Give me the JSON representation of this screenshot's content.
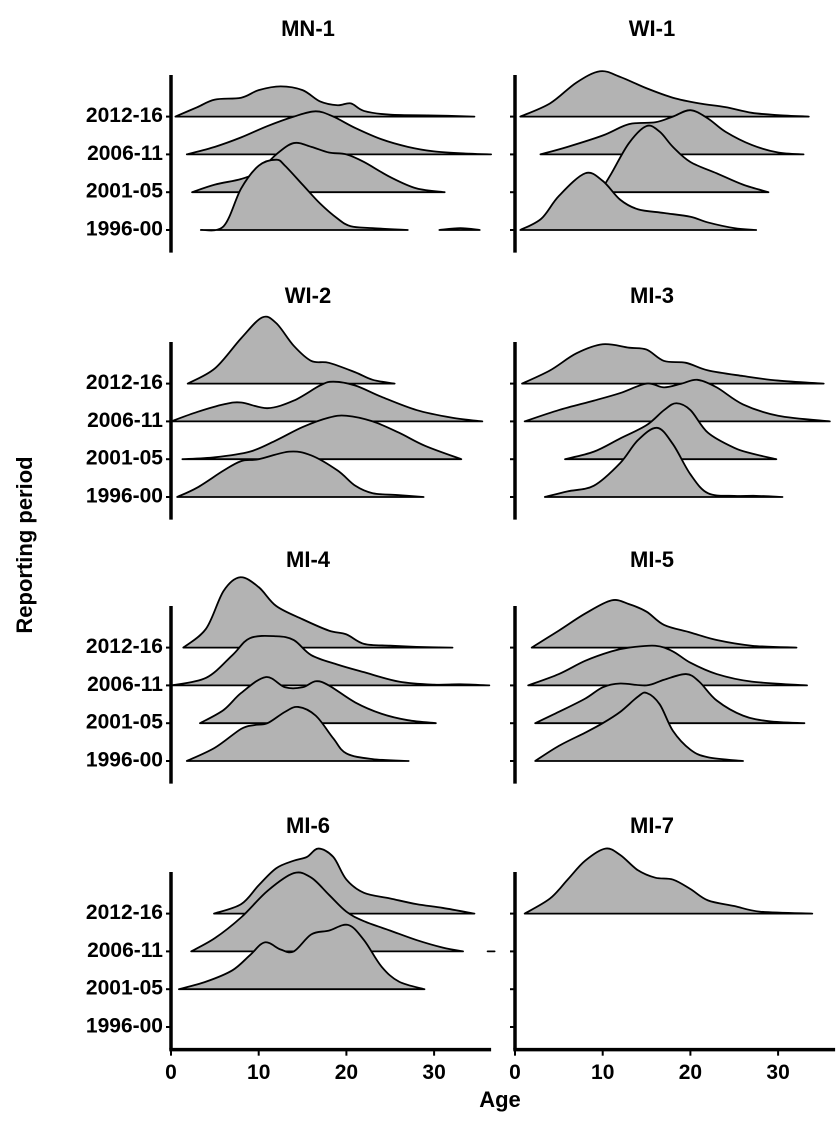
{
  "chart_data": [
    {
      "type": "ridgeline",
      "title": "MN-1",
      "ylabel": "Reporting period",
      "categories": [
        "1996-00",
        "2001-05",
        "2006-11",
        "2012-16"
      ],
      "xlim": [
        0,
        36.5
      ],
      "ylim": [
        -0.6,
        4.1
      ],
      "color": "#b3b3b3",
      "series": [
        {
          "x": [
            3.4,
            6,
            8,
            10,
            12,
            13,
            15,
            17,
            19,
            20.5,
            23,
            27,
            29,
            30.6,
            33,
            35.2
          ],
          "values": [
            0,
            0.1,
            1.1,
            1.7,
            1.86,
            1.7,
            1.2,
            0.7,
            0.3,
            0.1,
            0.05,
            0,
            null,
            0,
            0.05,
            0
          ]
        },
        {
          "x": [
            2.4,
            5,
            8,
            10,
            12,
            14,
            16,
            18,
            20,
            22,
            25,
            28,
            31.2
          ],
          "values": [
            0,
            0.2,
            0.35,
            0.55,
            1.0,
            1.3,
            1.2,
            1.05,
            1.0,
            0.8,
            0.4,
            0.1,
            0
          ]
        },
        {
          "x": [
            1.8,
            5,
            8,
            11,
            14,
            16.5,
            18.5,
            21,
            24,
            27,
            30,
            34,
            36.5
          ],
          "values": [
            0,
            0.2,
            0.45,
            0.75,
            1.0,
            1.14,
            1.0,
            0.7,
            0.4,
            0.2,
            0.08,
            0.02,
            0
          ]
        },
        {
          "x": [
            0.5,
            3,
            5,
            8,
            10,
            12.5,
            15,
            17,
            19,
            20.5,
            22,
            25,
            30,
            34.6
          ],
          "values": [
            0,
            0.25,
            0.45,
            0.5,
            0.7,
            0.8,
            0.7,
            0.4,
            0.3,
            0.35,
            0.15,
            0.05,
            0.03,
            0
          ]
        }
      ]
    },
    {
      "type": "ridgeline",
      "title": "WI-1",
      "xlim": [
        0,
        36.5
      ],
      "ylim": [
        -0.6,
        4.1
      ],
      "color": "#b3b3b3",
      "series": [
        {
          "x": [
            0.6,
            3,
            5,
            8,
            10,
            12,
            14,
            17,
            20,
            22,
            25,
            27.5
          ],
          "values": [
            0,
            0.3,
            0.9,
            1.5,
            1.3,
            0.8,
            0.55,
            0.45,
            0.35,
            0.2,
            0.05,
            0
          ]
        },
        {
          "x": [
            9.7,
            11,
            13,
            15,
            16.5,
            18,
            20,
            23,
            26,
            28.9
          ],
          "values": [
            0,
            0.5,
            1.3,
            1.75,
            1.6,
            1.2,
            0.8,
            0.5,
            0.2,
            0
          ]
        },
        {
          "x": [
            2.9,
            6,
            10,
            13,
            16,
            18,
            20,
            22,
            24,
            27,
            30,
            32.9
          ],
          "values": [
            0,
            0.2,
            0.5,
            0.8,
            0.85,
            1.0,
            1.17,
            0.95,
            0.6,
            0.25,
            0.05,
            0
          ]
        },
        {
          "x": [
            0.6,
            4,
            7,
            9.7,
            12,
            15,
            18,
            21,
            24,
            27,
            30,
            33.5
          ],
          "values": [
            0,
            0.35,
            0.9,
            1.2,
            1.05,
            0.75,
            0.5,
            0.35,
            0.25,
            0.1,
            0.04,
            0
          ]
        }
      ]
    },
    {
      "type": "ridgeline",
      "title": "WI-2",
      "categories": [
        "1996-00",
        "2001-05",
        "2006-11",
        "2012-16"
      ],
      "xlim": [
        0,
        36.5
      ],
      "ylim": [
        -0.6,
        4.1
      ],
      "color": "#b3b3b3",
      "series": [
        {
          "x": [
            0.7,
            3,
            6,
            8,
            10,
            13.5,
            16,
            19,
            21,
            23,
            26,
            28.8
          ],
          "values": [
            0,
            0.25,
            0.7,
            0.95,
            1.0,
            1.2,
            1.1,
            0.7,
            0.3,
            0.1,
            0.05,
            0
          ]
        },
        {
          "x": [
            1.3,
            5,
            9,
            12,
            15,
            18,
            20,
            23,
            26,
            29,
            33.1
          ],
          "values": [
            0,
            0.05,
            0.2,
            0.5,
            0.85,
            1.1,
            1.15,
            1.0,
            0.7,
            0.35,
            0
          ]
        },
        {
          "x": [
            0,
            3,
            6,
            8,
            11,
            14,
            17,
            18.5,
            21,
            24,
            28,
            32,
            35.5
          ],
          "values": [
            0,
            0.25,
            0.45,
            0.5,
            0.35,
            0.55,
            0.95,
            1.05,
            0.95,
            0.65,
            0.3,
            0.1,
            0
          ]
        },
        {
          "x": [
            1.9,
            5,
            8,
            10.4,
            12,
            14,
            16,
            18,
            21,
            23,
            25.5
          ],
          "values": [
            0,
            0.4,
            1.2,
            1.75,
            1.6,
            1.0,
            0.6,
            0.55,
            0.3,
            0.1,
            0
          ]
        }
      ]
    },
    {
      "type": "ridgeline",
      "title": "MI-3",
      "xlim": [
        0,
        36.5
      ],
      "ylim": [
        -0.6,
        4.1
      ],
      "color": "#b3b3b3",
      "series": [
        {
          "x": [
            3.4,
            6,
            9,
            12,
            14,
            16.2,
            18,
            20,
            22,
            25,
            27.5,
            30.5
          ],
          "values": [
            0,
            0.15,
            0.3,
            0.9,
            1.5,
            1.83,
            1.4,
            0.6,
            0.1,
            0.03,
            0.03,
            0
          ]
        },
        {
          "x": [
            5.7,
            9,
            12,
            15,
            17,
            18.4,
            20,
            22,
            25,
            27,
            29.8
          ],
          "values": [
            0,
            0.2,
            0.55,
            0.9,
            1.3,
            1.48,
            1.3,
            0.7,
            0.3,
            0.15,
            0
          ]
        },
        {
          "x": [
            1.1,
            5,
            9,
            12,
            15,
            17,
            19,
            20.8,
            23,
            26,
            30,
            35.9
          ],
          "values": [
            0,
            0.3,
            0.55,
            0.75,
            1.0,
            0.9,
            1.0,
            1.1,
            0.9,
            0.45,
            0.15,
            0
          ]
        },
        {
          "x": [
            0.8,
            4,
            7,
            10,
            13,
            15,
            17,
            19.5,
            22,
            26,
            30,
            35.2
          ],
          "values": [
            0,
            0.35,
            0.8,
            1.04,
            0.95,
            0.9,
            0.6,
            0.55,
            0.35,
            0.2,
            0.08,
            0
          ]
        }
      ]
    },
    {
      "type": "ridgeline",
      "title": "MI-4",
      "categories": [
        "1996-00",
        "2001-05",
        "2006-11",
        "2012-16"
      ],
      "xlim": [
        0,
        36.5
      ],
      "ylim": [
        -0.6,
        4.1
      ],
      "color": "#b3b3b3",
      "series": [
        {
          "x": [
            1.8,
            5,
            8,
            9.5,
            11,
            13,
            14.5,
            16.5,
            18.5,
            20,
            23,
            27.1
          ],
          "values": [
            0,
            0.35,
            0.85,
            0.95,
            1.0,
            1.3,
            1.43,
            1.2,
            0.6,
            0.2,
            0.05,
            0
          ]
        },
        {
          "x": [
            3.3,
            6,
            8,
            10.8,
            13,
            15,
            16.5,
            18,
            21,
            24,
            27,
            30.2
          ],
          "values": [
            0,
            0.35,
            0.8,
            1.22,
            0.95,
            0.95,
            1.11,
            1.0,
            0.55,
            0.25,
            0.08,
            0
          ]
        },
        {
          "x": [
            0,
            4,
            7,
            9,
            12,
            14,
            16,
            19,
            22,
            26,
            30,
            33,
            36.3
          ],
          "values": [
            0,
            0.2,
            0.8,
            1.25,
            1.3,
            1.2,
            0.8,
            0.55,
            0.35,
            0.1,
            0.02,
            0.03,
            0
          ]
        },
        {
          "x": [
            1.4,
            4,
            6,
            7.9,
            10,
            12,
            15,
            18,
            20,
            22,
            25,
            28,
            32.1
          ],
          "values": [
            0,
            0.5,
            1.5,
            1.86,
            1.6,
            1.1,
            0.75,
            0.45,
            0.35,
            0.1,
            0.05,
            0.02,
            0
          ]
        }
      ]
    },
    {
      "type": "ridgeline",
      "title": "MI-5",
      "xlim": [
        0,
        36.5
      ],
      "ylim": [
        -0.6,
        4.1
      ],
      "color": "#b3b3b3",
      "series": [
        {
          "x": [
            2.3,
            5,
            8,
            10,
            12,
            14,
            15,
            16.5,
            18,
            20,
            22,
            26
          ],
          "values": [
            0,
            0.4,
            0.75,
            1.0,
            1.3,
            1.7,
            1.8,
            1.5,
            0.8,
            0.3,
            0.1,
            0
          ]
        },
        {
          "x": [
            2.3,
            5,
            8,
            10,
            12,
            15,
            17,
            19.5,
            21,
            23,
            26,
            29,
            33
          ],
          "values": [
            0,
            0.3,
            0.65,
            0.95,
            1.05,
            1.0,
            1.15,
            1.3,
            1.1,
            0.6,
            0.2,
            0.05,
            0
          ]
        },
        {
          "x": [
            1.5,
            5,
            8,
            11,
            13,
            16,
            18,
            20,
            23,
            27,
            33.3
          ],
          "values": [
            0,
            0.3,
            0.65,
            0.9,
            1.0,
            1.05,
            0.9,
            0.6,
            0.3,
            0.1,
            0
          ]
        },
        {
          "x": [
            1.9,
            5,
            8,
            11,
            13,
            15,
            17,
            20,
            23,
            27,
            32.1
          ],
          "values": [
            0,
            0.45,
            0.9,
            1.25,
            1.15,
            0.95,
            0.6,
            0.4,
            0.2,
            0.05,
            0
          ]
        }
      ]
    },
    {
      "type": "ridgeline",
      "title": "MI-6",
      "categories": [
        "1996-00",
        "2001-05",
        "2006-11",
        "2012-16"
      ],
      "xlabel": "Age",
      "xlim": [
        0,
        36.5
      ],
      "ylim": [
        -0.6,
        4.1
      ],
      "xticks": [
        0,
        10,
        20,
        30
      ],
      "color": "#b3b3b3",
      "series": [
        null,
        {
          "x": [
            0.9,
            4,
            7,
            9,
            10.7,
            12.5,
            14,
            16,
            18,
            20.2,
            22,
            24,
            26,
            28.9
          ],
          "values": [
            0,
            0.2,
            0.5,
            0.9,
            1.24,
            1.05,
            1.0,
            1.45,
            1.55,
            1.7,
            1.3,
            0.6,
            0.2,
            0
          ]
        },
        {
          "x": [
            2.3,
            5,
            8,
            11,
            14,
            16,
            18,
            20,
            22,
            25,
            28,
            31,
            33.3,
            34.7,
            36.1,
            36.9
          ],
          "values": [
            0,
            0.35,
            0.9,
            1.6,
            2.07,
            1.95,
            1.5,
            1.05,
            0.8,
            0.55,
            0.3,
            0.1,
            0,
            null,
            0,
            0
          ]
        },
        {
          "x": [
            4.9,
            8,
            10,
            12,
            14,
            15.5,
            16.8,
            18.5,
            20,
            22,
            25,
            28,
            31,
            34.6
          ],
          "values": [
            0,
            0.25,
            0.75,
            1.2,
            1.4,
            1.5,
            1.72,
            1.5,
            0.9,
            0.55,
            0.4,
            0.25,
            0.15,
            0
          ]
        }
      ]
    },
    {
      "type": "ridgeline",
      "title": "MI-7",
      "xlim": [
        0,
        36.5
      ],
      "ylim": [
        -0.6,
        4.1
      ],
      "xticks": [
        0,
        10,
        20,
        30
      ],
      "color": "#b3b3b3",
      "series": [
        null,
        null,
        null,
        {
          "x": [
            1.1,
            4,
            6,
            8,
            10.3,
            12,
            14,
            16,
            18,
            20,
            22,
            25,
            28,
            33.9
          ],
          "values": [
            0,
            0.4,
            0.9,
            1.4,
            1.72,
            1.55,
            1.15,
            0.95,
            0.9,
            0.65,
            0.35,
            0.2,
            0.05,
            0
          ]
        }
      ]
    }
  ]
}
